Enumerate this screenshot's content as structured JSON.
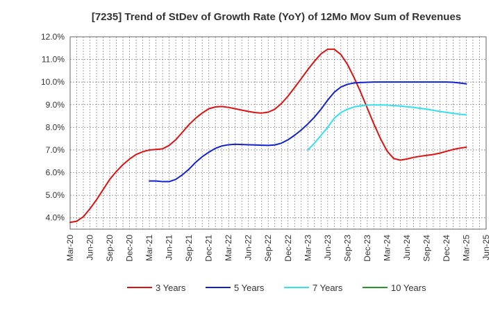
{
  "chart_data": {
    "type": "line",
    "title": "[7235]  Trend of StDev of Growth Rate (YoY) of 12Mo Mov Sum of Revenues",
    "xlabel": "",
    "ylabel": "",
    "x_tick_labels": [
      "Mar-20",
      "Jun-20",
      "Sep-20",
      "Dec-20",
      "Mar-21",
      "Jun-21",
      "Sep-21",
      "Dec-21",
      "Mar-22",
      "Jun-22",
      "Sep-22",
      "Dec-22",
      "Mar-23",
      "Jun-23",
      "Sep-23",
      "Dec-23",
      "Mar-24",
      "Jun-24",
      "Sep-24",
      "Dec-24",
      "Mar-25",
      "Jun-25"
    ],
    "y_tick_labels": [
      "4.0%",
      "5.0%",
      "6.0%",
      "7.0%",
      "8.0%",
      "9.0%",
      "10.0%",
      "11.0%",
      "12.0%"
    ],
    "ylim": [
      3.5,
      12.0
    ],
    "grid": true,
    "legend_position": "bottom",
    "series": [
      {
        "name": "3 Years",
        "color": "#dd1111",
        "start_index": 0,
        "values": [
          3.8,
          3.85,
          4.05,
          4.4,
          4.8,
          5.25,
          5.7,
          6.05,
          6.35,
          6.6,
          6.8,
          6.92,
          7.0,
          7.02,
          7.05,
          7.2,
          7.45,
          7.78,
          8.12,
          8.4,
          8.63,
          8.82,
          8.9,
          8.92,
          8.88,
          8.82,
          8.76,
          8.7,
          8.65,
          8.63,
          8.67,
          8.8,
          9.05,
          9.38,
          9.76,
          10.15,
          10.55,
          10.92,
          11.25,
          11.45,
          11.45,
          11.22,
          10.78,
          10.2,
          9.55,
          8.85,
          8.15,
          7.5,
          6.95,
          6.62,
          6.55,
          6.6,
          6.67,
          6.72,
          6.76,
          6.8,
          6.86,
          6.94,
          7.02,
          7.08,
          7.12
        ]
      },
      {
        "name": "5 Years",
        "color": "#1122cc",
        "start_index": 12,
        "values": [
          5.63,
          5.63,
          5.6,
          5.6,
          5.7,
          5.9,
          6.15,
          6.45,
          6.7,
          6.9,
          7.07,
          7.18,
          7.23,
          7.25,
          7.24,
          7.23,
          7.22,
          7.21,
          7.2,
          7.22,
          7.3,
          7.45,
          7.65,
          7.88,
          8.15,
          8.45,
          8.8,
          9.2,
          9.55,
          9.78,
          9.9,
          9.96,
          9.98,
          9.99,
          10.0,
          10.0,
          10.0,
          10.0,
          10.0,
          10.0,
          10.0,
          10.0,
          10.0,
          10.0,
          10.0,
          10.0,
          9.99,
          9.96,
          9.92
        ]
      },
      {
        "name": "7 Years",
        "color": "#33e0ee",
        "start_index": 36,
        "values": [
          7.0,
          7.3,
          7.65,
          8.0,
          8.4,
          8.65,
          8.8,
          8.9,
          8.95,
          8.98,
          8.99,
          8.99,
          8.98,
          8.96,
          8.94,
          8.91,
          8.88,
          8.84,
          8.8,
          8.75,
          8.7,
          8.66,
          8.62,
          8.58,
          8.55
        ]
      },
      {
        "name": "10 Years",
        "color": "#229922",
        "start_index": 0,
        "values": []
      }
    ]
  }
}
